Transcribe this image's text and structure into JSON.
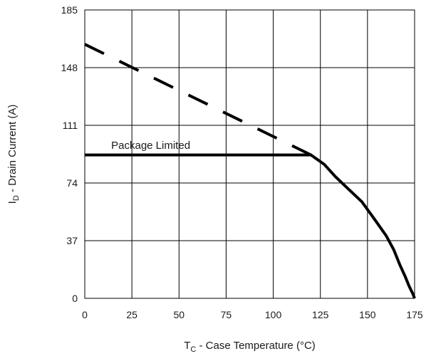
{
  "chart_data": {
    "type": "line",
    "xlabel": {
      "main": "T",
      "sub": "C",
      "rest": " - Case Temperature (°C)"
    },
    "ylabel": {
      "main": "I",
      "sub": "D",
      "rest": " - Drain Current (A)"
    },
    "xlim": [
      0,
      175
    ],
    "ylim": [
      0,
      185
    ],
    "x_ticks": [
      0,
      25,
      50,
      75,
      100,
      125,
      150,
      175
    ],
    "y_ticks": [
      0,
      37,
      74,
      111,
      148,
      185
    ],
    "grid": true,
    "annotations": [
      {
        "text": "Package Limited",
        "x": 35,
        "y": 96
      }
    ],
    "series": [
      {
        "style": "dashed",
        "color": "#000000",
        "x": [
          0,
          120
        ],
        "y": [
          163,
          92
        ]
      },
      {
        "style": "solid",
        "color": "#000000",
        "x": [
          0,
          120,
          127,
          133,
          140,
          147,
          153,
          160,
          164,
          167,
          170,
          172,
          174,
          175
        ],
        "y": [
          92,
          92,
          86,
          78,
          70,
          62,
          52,
          40,
          31,
          22,
          14,
          8,
          3,
          0
        ]
      }
    ]
  }
}
